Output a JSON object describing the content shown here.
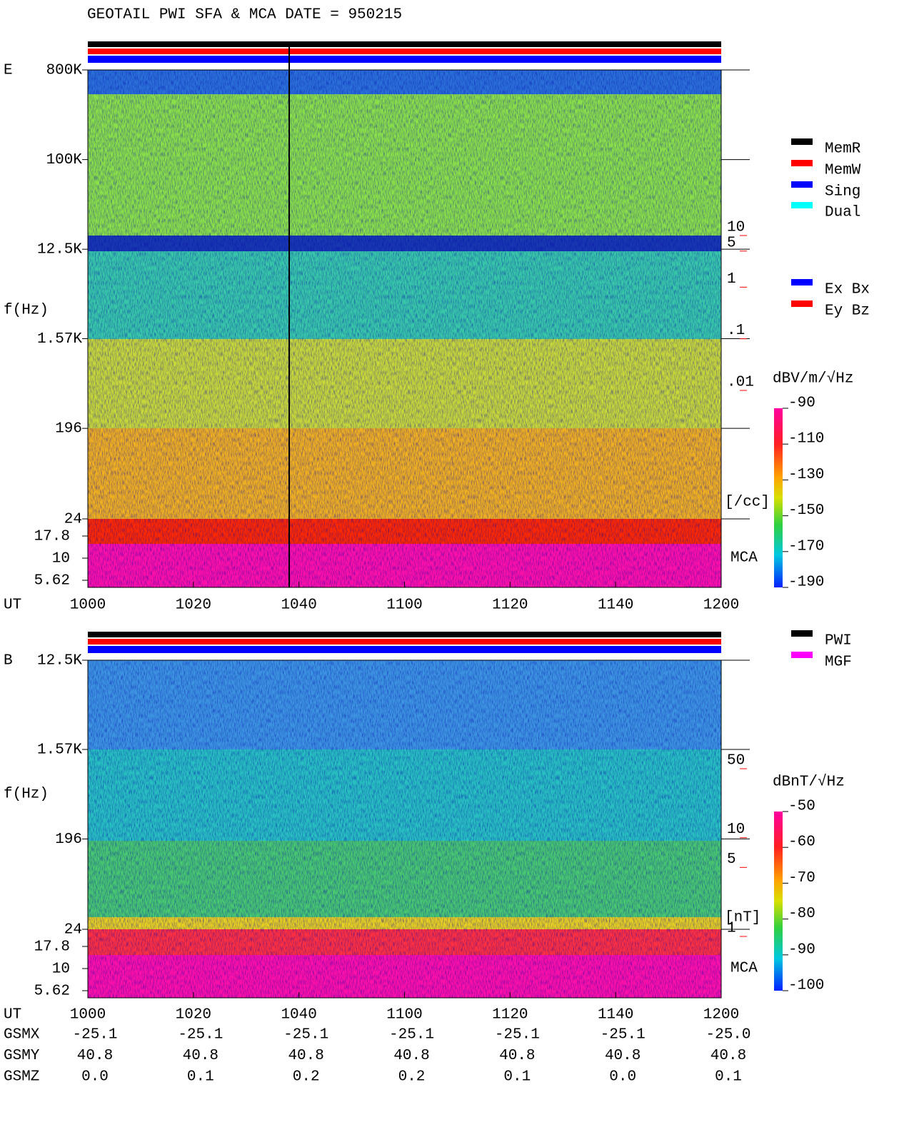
{
  "title": "GEOTAIL  PWI SFA & MCA   DATE = 950215",
  "chart_data": [
    {
      "type": "spectrogram",
      "panel": "E",
      "ylabel": "f(Hz)",
      "log_y": true,
      "ylim": [
        24,
        800000
      ],
      "yticks": [
        {
          "value": 800000,
          "label": "800K"
        },
        {
          "value": 100000,
          "label": "100K"
        },
        {
          "value": 12500,
          "label": "12.5K"
        },
        {
          "value": 1570,
          "label": "1.57K"
        },
        196,
        24
      ],
      "mca_yticks": [
        17.8,
        10,
        5.62
      ],
      "mca_label": "MCA",
      "xlabel": "UT",
      "categories": [
        "1000",
        "1020",
        "1040",
        "1100",
        "1120",
        "1140",
        "1200"
      ],
      "density_ylim": [
        0.01,
        10
      ],
      "density_ticks": [
        10,
        5,
        1,
        {
          "value": 0.1,
          "label": ".1"
        },
        {
          "value": 0.01,
          "label": ".01"
        }
      ],
      "density_unit": "[/cc]",
      "colorbar": {
        "label": "dBV/m/√Hz",
        "lim": [
          -190,
          -90
        ],
        "ticks": [
          -90,
          -110,
          -130,
          -150,
          -170,
          -190
        ]
      },
      "legend": [
        {
          "name": "MemR",
          "color": "#000000"
        },
        {
          "name": "MemW",
          "color": "#ff0000"
        },
        {
          "name": "Sing",
          "color": "#0000ff"
        },
        {
          "name": "Dual",
          "color": "#00ffff"
        },
        {
          "name": "Ex Bx",
          "color": "#0000ff"
        },
        {
          "name": "Ey Bz",
          "color": "#ff0000"
        }
      ]
    },
    {
      "type": "spectrogram",
      "panel": "B",
      "ylabel": "f(Hz)",
      "log_y": true,
      "ylim": [
        24,
        12500
      ],
      "yticks": [
        {
          "value": 12500,
          "label": "12.5K"
        },
        {
          "value": 1570,
          "label": "1.57K"
        },
        196,
        24
      ],
      "mca_yticks": [
        17.8,
        10,
        5.62
      ],
      "mca_label": "MCA",
      "xlabel": "UT",
      "categories": [
        "1000",
        "1020",
        "1040",
        "1100",
        "1120",
        "1140",
        "1200"
      ],
      "density_ylim": [
        1,
        50
      ],
      "density_ticks": [
        50,
        10,
        5,
        1
      ],
      "density_unit": "[nT]",
      "colorbar": {
        "label": "dBnT/√Hz",
        "lim": [
          -100,
          -50
        ],
        "ticks": [
          -50,
          -60,
          -70,
          -80,
          -90,
          -100
        ]
      },
      "legend": [
        {
          "name": "PWI",
          "color": "#000000"
        },
        {
          "name": "MGF",
          "color": "#ff00ff"
        }
      ]
    }
  ],
  "orbit": [
    {
      "name": "GSMX",
      "values": [
        -25.1,
        -25.1,
        -25.1,
        -25.1,
        -25.1,
        -25.1,
        -25.0
      ],
      "value_labels": [
        "-25.1",
        "-25.1",
        "-25.1",
        "-25.1",
        "-25.1",
        "-25.1",
        "-25.0"
      ]
    },
    {
      "name": "GSMY",
      "values": [
        40.8,
        40.8,
        40.8,
        40.8,
        40.8,
        40.8,
        40.8
      ]
    },
    {
      "name": "GSMZ",
      "values": [
        0.0,
        0.1,
        0.2,
        0.2,
        0.1,
        0.0,
        0.1
      ],
      "value_labels": [
        "0.0",
        "0.1",
        "0.2",
        "0.2",
        "0.1",
        "0.0",
        "0.1"
      ]
    }
  ]
}
